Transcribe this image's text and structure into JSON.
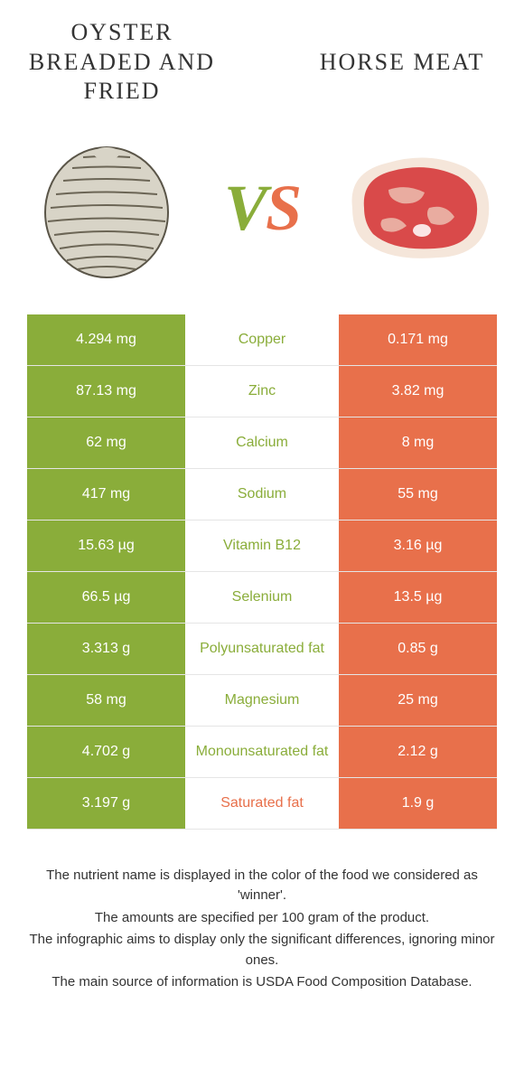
{
  "foods": {
    "left": {
      "name": "Oyster breaded and fried",
      "color": "#8aad3a"
    },
    "right": {
      "name": "Horse meat",
      "color": "#e8704b"
    }
  },
  "vs_label": "VS",
  "colors": {
    "green": "#8aad3a",
    "orange": "#e8704b",
    "row_border": "#e5e5e5",
    "text": "#333333",
    "bg": "#ffffff"
  },
  "nutrients": [
    {
      "name": "Copper",
      "left": "4.294 mg",
      "right": "0.171 mg",
      "winner": "left"
    },
    {
      "name": "Zinc",
      "left": "87.13 mg",
      "right": "3.82 mg",
      "winner": "left"
    },
    {
      "name": "Calcium",
      "left": "62 mg",
      "right": "8 mg",
      "winner": "left"
    },
    {
      "name": "Sodium",
      "left": "417 mg",
      "right": "55 mg",
      "winner": "left"
    },
    {
      "name": "Vitamin B12",
      "left": "15.63 µg",
      "right": "3.16 µg",
      "winner": "left"
    },
    {
      "name": "Selenium",
      "left": "66.5 µg",
      "right": "13.5 µg",
      "winner": "left"
    },
    {
      "name": "Polyunsaturated fat",
      "left": "3.313 g",
      "right": "0.85 g",
      "winner": "left"
    },
    {
      "name": "Magnesium",
      "left": "58 mg",
      "right": "25 mg",
      "winner": "left"
    },
    {
      "name": "Monounsaturated fat",
      "left": "4.702 g",
      "right": "2.12 g",
      "winner": "left"
    },
    {
      "name": "Saturated fat",
      "left": "3.197 g",
      "right": "1.9 g",
      "winner": "right"
    }
  ],
  "footer": [
    "The nutrient name is displayed in the color of the food we considered as 'winner'.",
    "The amounts are specified per 100 gram of the product.",
    "The infographic aims to display only the significant differences, ignoring minor ones.",
    "The main source of information is USDA Food Composition Database."
  ]
}
